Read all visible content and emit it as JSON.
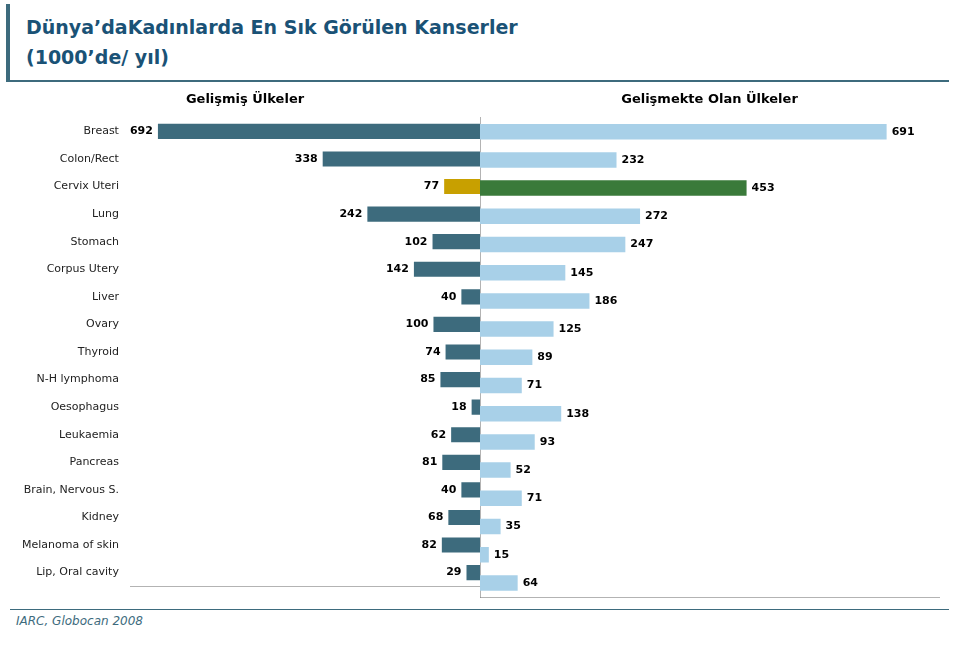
{
  "chart_data": [
    {
      "type": "bar",
      "orientation": "horizontal",
      "title": [
        "Dünya’daKadınlarda En Sık Görülen Kanserler",
        "(1000’de/ yıl)"
      ],
      "subtitle": "Gelişmiş Ülkeler",
      "annotation": "IARC, Globocan 2008",
      "categories": [
        "Breast",
        "Colon/Rect",
        "Cervix Uteri",
        "Lung",
        "Stomach",
        "Corpus Utery",
        "Liver",
        "Ovary",
        "Thyroid",
        "N-H lymphoma",
        "Oesophagus",
        "Leukaemia",
        "Pancreas",
        "Brain, Nervous S.",
        "Kidney",
        "Melanoma of skin",
        "Lip, Oral cavity"
      ],
      "values": [
        692,
        338,
        77,
        242,
        102,
        142,
        40,
        100,
        74,
        85,
        18,
        62,
        81,
        40,
        68,
        82,
        29
      ],
      "colors": [
        "#3d6b7d",
        "#3d6b7d",
        "#c8a000",
        "#3d6b7d",
        "#3d6b7d",
        "#3d6b7d",
        "#3d6b7d",
        "#3d6b7d",
        "#3d6b7d",
        "#3d6b7d",
        "#3d6b7d",
        "#3d6b7d",
        "#3d6b7d",
        "#3d6b7d",
        "#3d6b7d",
        "#3d6b7d",
        "#3d6b7d"
      ],
      "xlim": [
        0,
        750
      ],
      "data_labels": true,
      "grid": false,
      "tick_labels": "y"
    },
    {
      "type": "bar",
      "orientation": "horizontal",
      "subtitle": "Gelişmekte Olan Ülkeler",
      "categories": [
        "Breast",
        "Colon/Rect",
        "Cervix Uteri",
        "Lung",
        "Stomach",
        "Corpus Utery",
        "Liver",
        "Ovary",
        "Thyroid",
        "N-H lymphoma",
        "Oesophagus",
        "Leukaemia",
        "Pancreas",
        "Brain, Nervous S.",
        "Kidney",
        "Melanoma of skin",
        "Lip, Oral cavity"
      ],
      "values": [
        691,
        232,
        453,
        272,
        247,
        145,
        186,
        125,
        89,
        71,
        138,
        93,
        52,
        71,
        35,
        15,
        64
      ],
      "colors": [
        "#a8d0e8",
        "#a8d0e8",
        "#3a7a3a",
        "#a8d0e8",
        "#a8d0e8",
        "#a8d0e8",
        "#a8d0e8",
        "#a8d0e8",
        "#a8d0e8",
        "#a8d0e8",
        "#a8d0e8",
        "#a8d0e8",
        "#a8d0e8",
        "#a8d0e8",
        "#a8d0e8",
        "#a8d0e8",
        "#a8d0e8"
      ],
      "xlim": [
        0,
        780
      ],
      "data_labels": true,
      "grid": false,
      "tick_labels": false
    }
  ]
}
